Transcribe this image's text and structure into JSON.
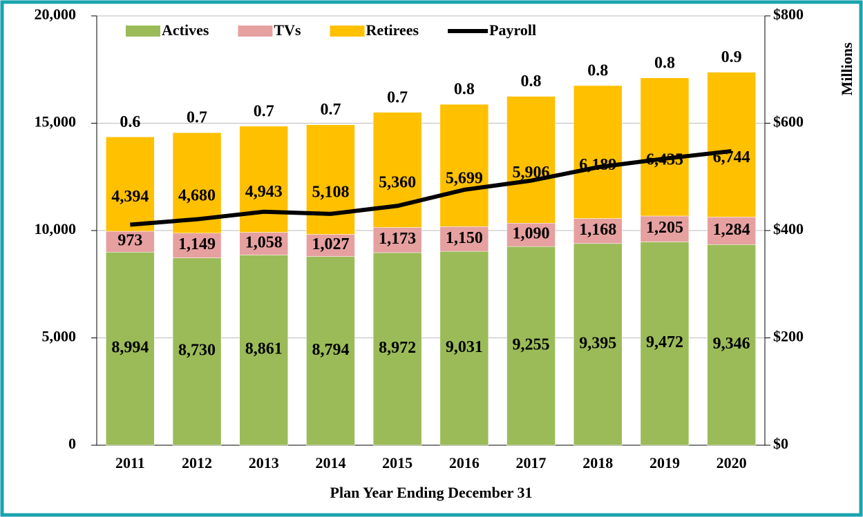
{
  "chart_data": {
    "type": "stacked-bar-line",
    "categories": [
      "2011",
      "2012",
      "2013",
      "2014",
      "2015",
      "2016",
      "2017",
      "2018",
      "2019",
      "2020"
    ],
    "xlabel": "Plan Year Ending December 31",
    "y2label": "Millions",
    "series": [
      {
        "name": "Actives",
        "color": "#9bbb59",
        "values": [
          8994,
          8730,
          8861,
          8794,
          8972,
          9031,
          9255,
          9395,
          9472,
          9346
        ],
        "value_labels": [
          "8,994",
          "8,730",
          "8,861",
          "8,794",
          "8,972",
          "9,031",
          "9,255",
          "9,395",
          "9,472",
          "9,346"
        ]
      },
      {
        "name": "TVs",
        "color": "#e6a0a0",
        "values": [
          973,
          1149,
          1058,
          1027,
          1173,
          1150,
          1090,
          1168,
          1205,
          1284
        ],
        "value_labels": [
          "973",
          "1,149",
          "1,058",
          "1,027",
          "1,173",
          "1,150",
          "1,090",
          "1,168",
          "1,205",
          "1,284"
        ]
      },
      {
        "name": "Retirees",
        "color": "#ffc000",
        "values": [
          4394,
          4680,
          4943,
          5108,
          5360,
          5699,
          5906,
          6189,
          6435,
          6744
        ],
        "value_labels": [
          "4,394",
          "4,680",
          "4,943",
          "5,108",
          "5,360",
          "5,699",
          "5,906",
          "6,189",
          "6,435",
          "6,744"
        ]
      },
      {
        "name": "Payroll",
        "color": "#000000",
        "axis": "y2",
        "values": [
          411,
          421,
          435,
          431,
          446,
          476,
          493,
          518,
          534,
          548
        ]
      }
    ],
    "annotations": [
      0.6,
      0.7,
      0.7,
      0.7,
      0.7,
      0.8,
      0.8,
      0.8,
      0.8,
      0.9
    ],
    "ylim": [
      0,
      20000
    ],
    "yticks": [
      0,
      {
        "value": 5000,
        "label": "5,000"
      },
      {
        "value": 10000,
        "label": "10,000"
      },
      {
        "value": 15000,
        "label": "15,000"
      },
      {
        "value": 20000,
        "label": "20,000"
      }
    ],
    "y2lim": [
      0,
      800
    ],
    "y2ticks": [
      {
        "value": 0,
        "label": "$0"
      },
      {
        "value": 200,
        "label": "$200"
      },
      {
        "value": 400,
        "label": "$400"
      },
      {
        "value": 600,
        "label": "$600"
      },
      {
        "value": 800,
        "label": "$800"
      }
    ],
    "grid": true,
    "legend": "top"
  }
}
